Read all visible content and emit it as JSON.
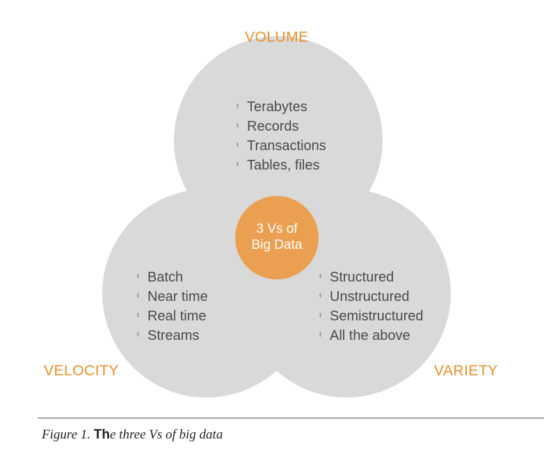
{
  "diagram": {
    "sets": [
      {
        "label": "VOLUME",
        "items": [
          "Terabytes",
          "Records",
          "Transactions",
          "Tables, files"
        ]
      },
      {
        "label": "VELOCITY",
        "items": [
          "Batch",
          "Near time",
          "Real time",
          "Streams"
        ]
      },
      {
        "label": "VARIETY",
        "items": [
          "Structured",
          "Unstructured",
          "Semistructured",
          "All the above"
        ]
      }
    ],
    "center": {
      "line1": "3 Vs of",
      "line2": "Big Data"
    },
    "bullet_marker": "t",
    "colors": {
      "circle": "#d9d9d9",
      "accent": "#e8902c",
      "center": "#eb9f50"
    }
  },
  "caption": {
    "prefix": "Figure 1. ",
    "bold": "Th",
    "rest": "e three Vs of big data"
  }
}
